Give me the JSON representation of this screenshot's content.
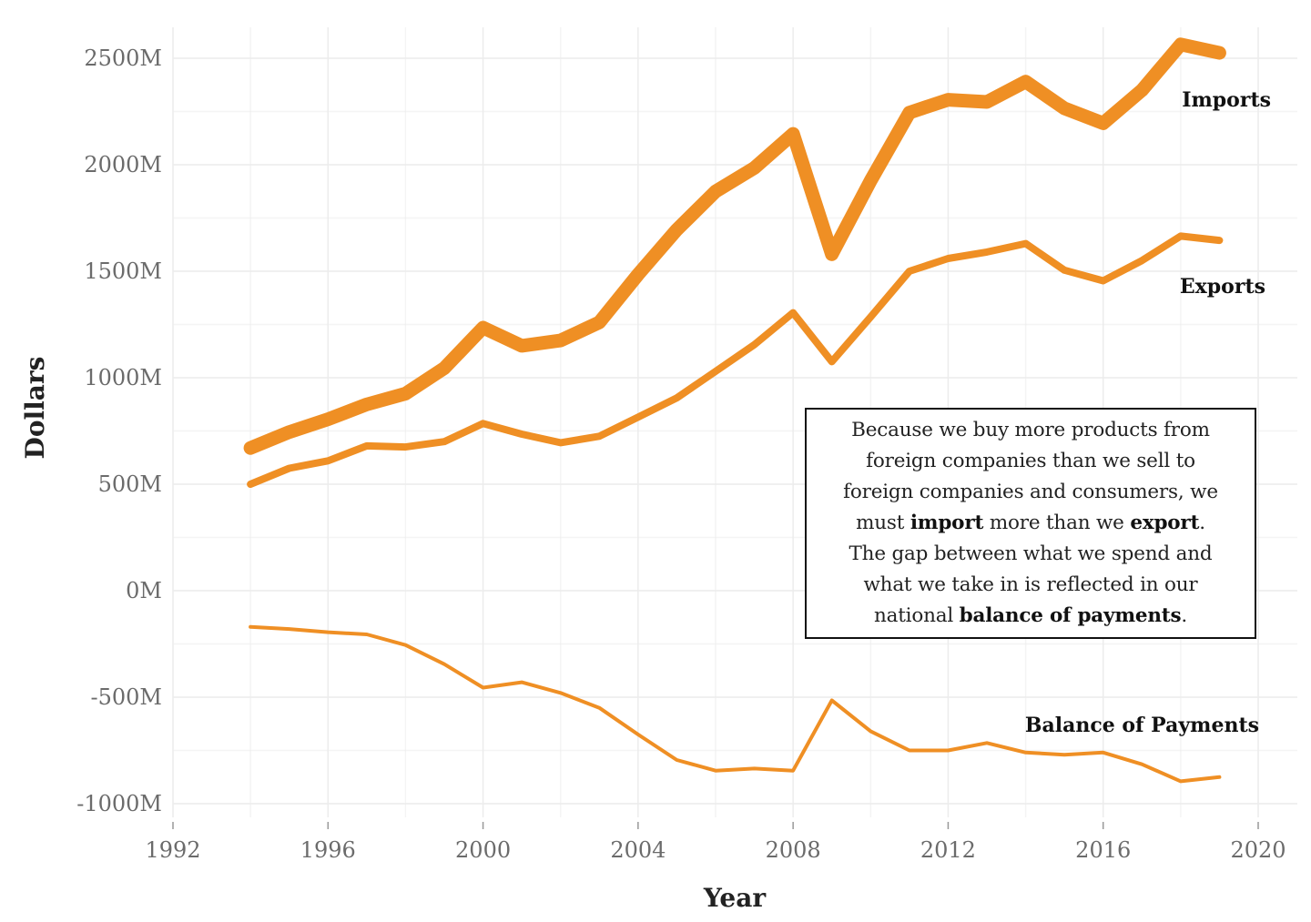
{
  "chart_data": {
    "type": "line",
    "xlabel": "Year",
    "ylabel": "Dollars",
    "xlim": [
      1992,
      2020
    ],
    "ylim": [
      -1000,
      2500
    ],
    "xticks": [
      1992,
      1996,
      2000,
      2004,
      2008,
      2012,
      2016,
      2020
    ],
    "yticks": [
      {
        "value": 2500,
        "label": "2500M"
      },
      {
        "value": 2000,
        "label": "2000M"
      },
      {
        "value": 1500,
        "label": "1500M"
      },
      {
        "value": 1000,
        "label": "1000M"
      },
      {
        "value": 500,
        "label": "500M"
      },
      {
        "value": 0,
        "label": "0M"
      },
      {
        "value": -500,
        "label": "-500M"
      },
      {
        "value": -1000,
        "label": "-1000M"
      }
    ],
    "x": [
      1994,
      1995,
      1996,
      1997,
      1998,
      1999,
      2000,
      2001,
      2002,
      2003,
      2004,
      2005,
      2006,
      2007,
      2008,
      2009,
      2010,
      2011,
      2012,
      2013,
      2014,
      2015,
      2016,
      2017,
      2018,
      2019
    ],
    "series": [
      {
        "name": "Imports",
        "color": "#ef8f24",
        "weight": "heavy",
        "values": [
          670,
          745,
          805,
          875,
          925,
          1045,
          1235,
          1150,
          1175,
          1260,
          1485,
          1695,
          1875,
          1985,
          2145,
          1580,
          1925,
          2245,
          2305,
          2295,
          2390,
          2265,
          2195,
          2350,
          2565,
          2525
        ]
      },
      {
        "name": "Exports",
        "color": "#ef8f24",
        "weight": "medium",
        "values": [
          500,
          575,
          610,
          680,
          675,
          700,
          785,
          735,
          695,
          725,
          815,
          905,
          1030,
          1155,
          1305,
          1075,
          1285,
          1500,
          1560,
          1590,
          1630,
          1505,
          1455,
          1550,
          1665,
          1645
        ]
      },
      {
        "name": "Balance of Payments",
        "color": "#ef8f24",
        "weight": "light",
        "values": [
          -170,
          -180,
          -195,
          -205,
          -255,
          -345,
          -455,
          -430,
          -480,
          -550,
          -675,
          -795,
          -845,
          -835,
          -845,
          -515,
          -660,
          -750,
          -750,
          -715,
          -760,
          -770,
          -760,
          -815,
          -895,
          -875
        ]
      }
    ]
  },
  "annotation": {
    "lines": [
      [
        {
          "t": "Because we buy more products from"
        }
      ],
      [
        {
          "t": "foreign companies than we sell to"
        }
      ],
      [
        {
          "t": "foreign companies and consumers, we"
        }
      ],
      [
        {
          "t": "must "
        },
        {
          "t": "import",
          "b": true
        },
        {
          "t": " more than we "
        },
        {
          "t": "export",
          "b": true
        },
        {
          "t": "."
        }
      ],
      [
        {
          "t": "The gap between what we spend and"
        }
      ],
      [
        {
          "t": "what we take in is reflected in our"
        }
      ],
      [
        {
          "t": "national "
        },
        {
          "t": "balance of payments",
          "b": true
        },
        {
          "t": "."
        }
      ]
    ]
  }
}
